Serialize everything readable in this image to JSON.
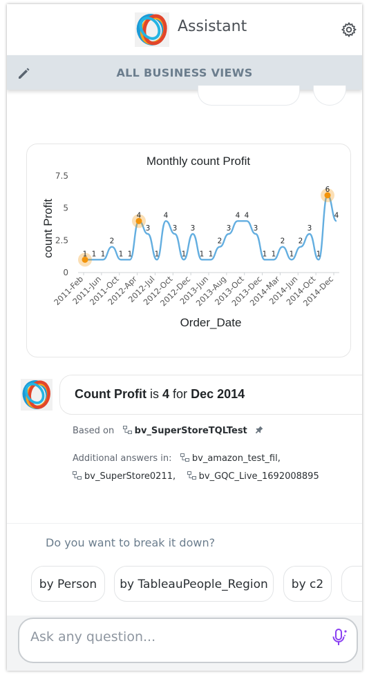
{
  "header": {
    "title": "Assistant"
  },
  "business_views_bar": {
    "title": "ALL BUSINESS VIEWS"
  },
  "chart_data": {
    "type": "line",
    "title": "Monthly count Profit",
    "xlabel": "Order_Date",
    "ylabel": "count Profit",
    "ylim": [
      0,
      7.5
    ],
    "y_ticks": [
      "0",
      "2.5",
      "5",
      "7.5"
    ],
    "x_tick_labels": [
      "2011-Feb",
      "2011-Jun",
      "2011-Oct",
      "2012-Apr",
      "2012-Jul",
      "2012-Oct",
      "2012-Dec",
      "2013-Jun",
      "2013-Aug",
      "2013-Oct",
      "2013-Dec",
      "2014-Mar",
      "2014-Jun",
      "2014-Oct",
      "2014-Dec"
    ],
    "values": [
      1,
      1,
      1,
      2,
      1,
      1,
      4,
      3,
      1,
      4,
      3,
      1,
      3,
      1,
      1,
      2,
      3,
      4,
      4,
      3,
      1,
      1,
      2,
      1,
      2,
      3,
      1,
      6,
      4
    ],
    "highlighted_points": [
      0,
      6,
      27
    ],
    "line_color": "#63aee0",
    "highlight_color": "#f2940b"
  },
  "answer": {
    "measure": "Count Profit",
    "verb": "is",
    "value": "4",
    "connector": "for",
    "period": "Dec 2014"
  },
  "source": {
    "based_on_label": "Based on",
    "business_view": "bv_SuperStoreTQLTest",
    "additional_label": "Additional answers in:",
    "additional_views": [
      "bv_amazon_test_fil,",
      "bv_SuperStore0211,",
      "bv_GQC_Live_1692008895"
    ]
  },
  "breakdown": {
    "question": "Do you want to break it down?",
    "chips": [
      "by Person",
      "by TableauPeople_Region",
      "by c2"
    ]
  },
  "input": {
    "placeholder": "Ask any question..."
  }
}
